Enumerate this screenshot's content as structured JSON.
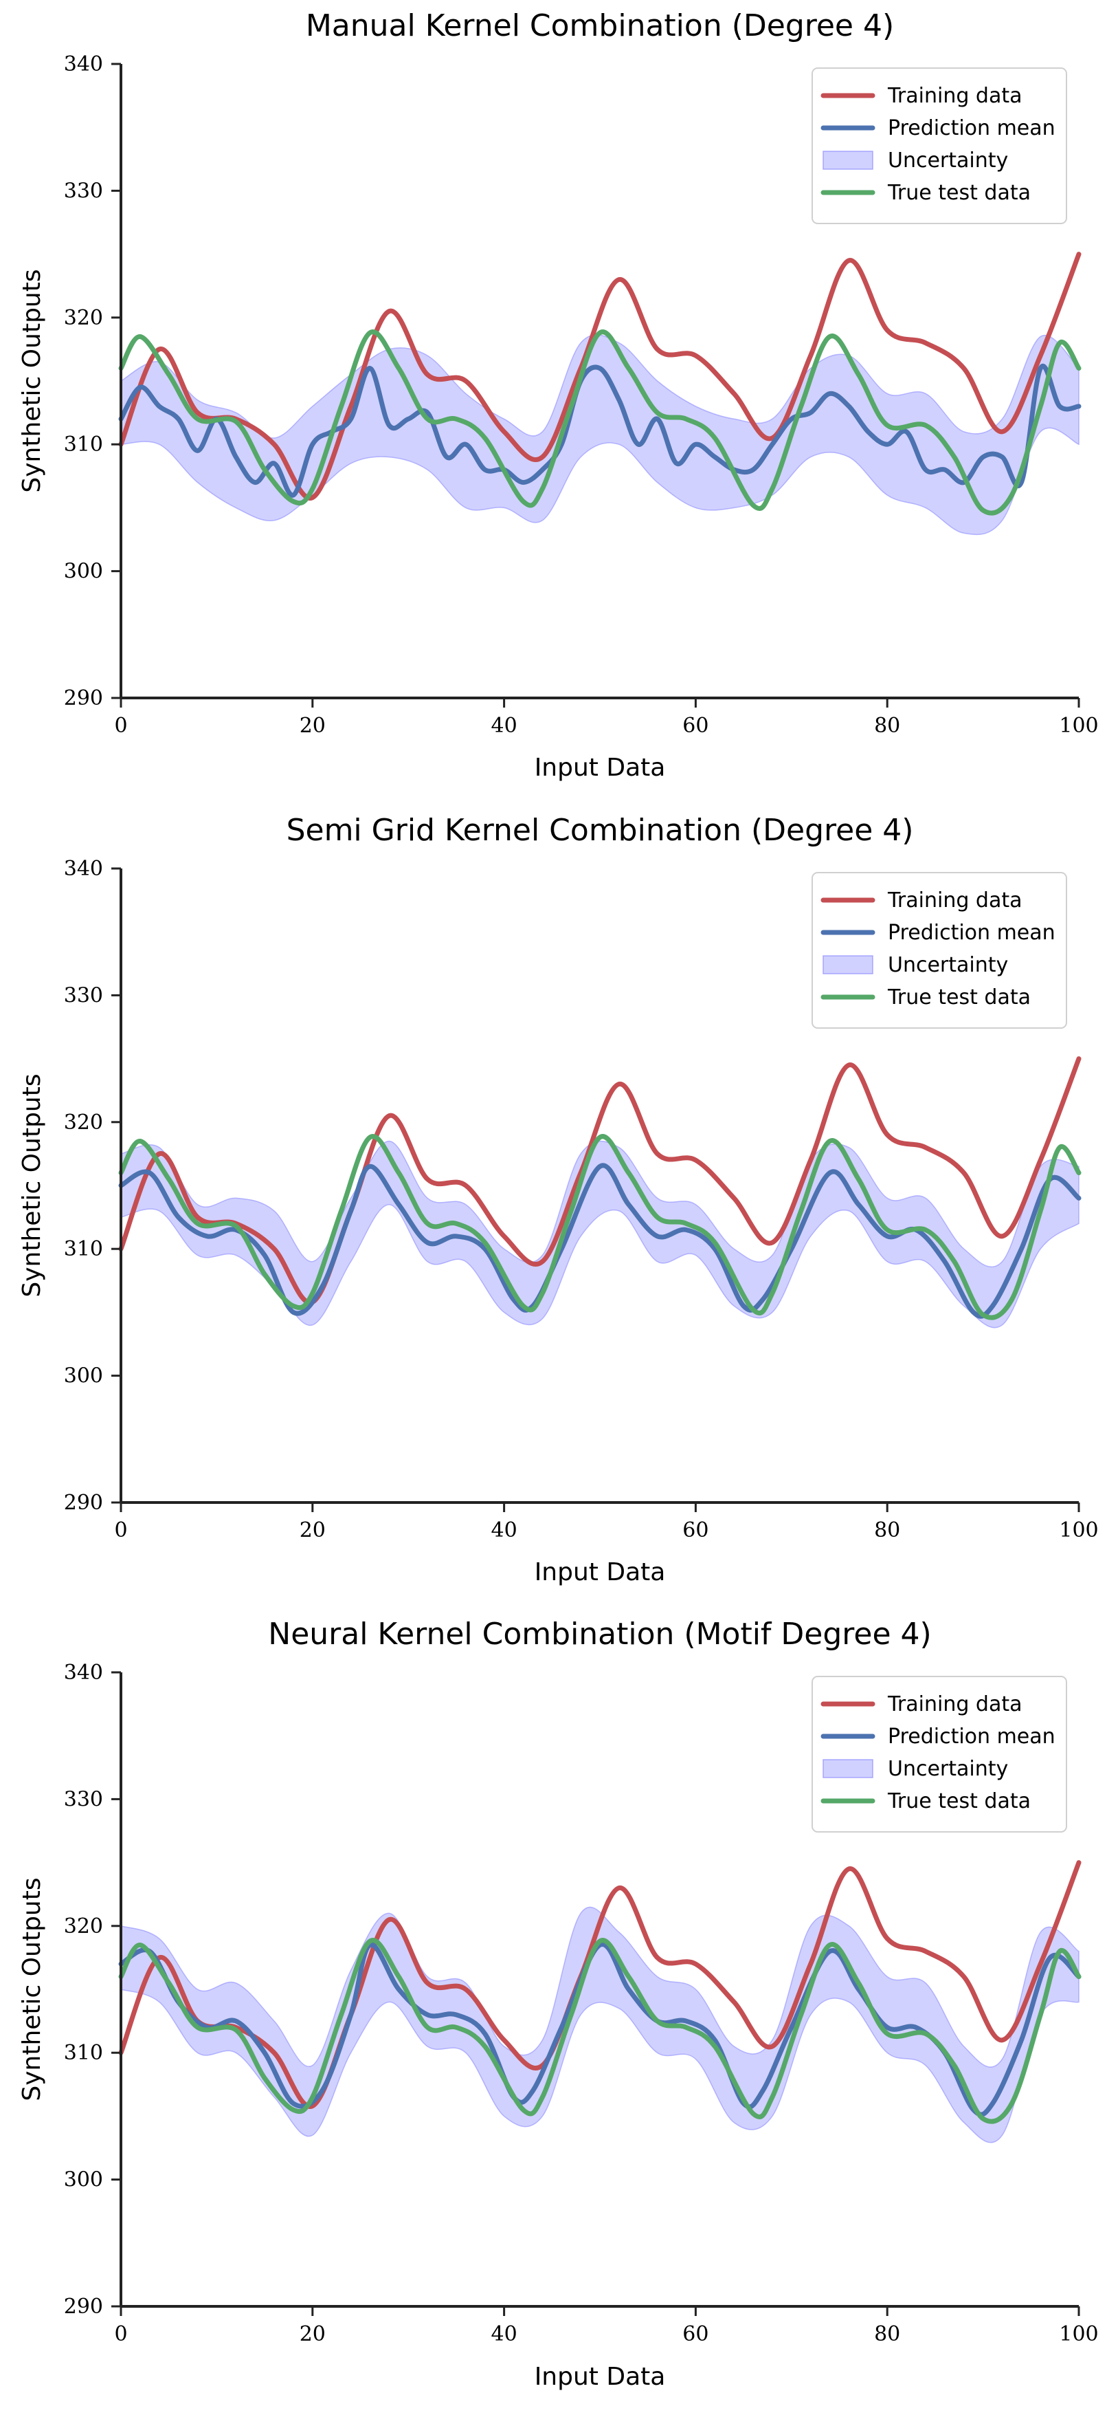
{
  "chart_data": [
    {
      "type": "line",
      "title": "Manual Kernel Combination (Degree 4)",
      "xlabel": "Input Data",
      "ylabel": "Synthetic Outputs",
      "xlim": [
        0,
        100
      ],
      "ylim": [
        290,
        340
      ],
      "xticks": [
        "0",
        "20",
        "40",
        "60",
        "80",
        "100"
      ],
      "yticks": [
        "290",
        "300",
        "310",
        "320",
        "330",
        "340"
      ],
      "grid": false,
      "legend_position": "top-right",
      "legend": [
        "Training data",
        "Prediction mean",
        "Uncertainty",
        "True test data"
      ],
      "series": [
        {
          "name": "Training data",
          "color": "#c44e52",
          "x": [
            0,
            4,
            8,
            12,
            16,
            20,
            24,
            28,
            32,
            36,
            40,
            44,
            48,
            52,
            56,
            60,
            64,
            68,
            72,
            76,
            80,
            84,
            88,
            92,
            96,
            100
          ],
          "y": [
            310,
            317.5,
            312.5,
            312,
            310,
            305.8,
            313,
            320.5,
            315.5,
            315,
            311,
            309,
            316,
            323,
            317.5,
            317,
            314,
            310.5,
            317,
            324.5,
            319,
            318,
            316,
            311,
            317,
            325
          ]
        },
        {
          "name": "Prediction mean",
          "color": "#4c72b0",
          "x": [
            0,
            2,
            4,
            6,
            8,
            10,
            12,
            14,
            16,
            18,
            20,
            22,
            24,
            26,
            28,
            30,
            32,
            34,
            36,
            38,
            40,
            42,
            44,
            46,
            48,
            50,
            52,
            54,
            56,
            58,
            60,
            62,
            64,
            66,
            68,
            70,
            72,
            74,
            76,
            78,
            80,
            82,
            84,
            86,
            88,
            90,
            92,
            94,
            96,
            98,
            100
          ],
          "y": [
            312,
            314.5,
            313,
            312,
            309.5,
            312,
            309,
            307,
            308.5,
            306,
            310,
            311,
            312,
            316,
            311.5,
            312,
            312.5,
            309,
            310,
            308,
            308,
            307,
            308,
            310,
            315,
            316,
            313.5,
            310,
            312,
            308.5,
            310,
            309,
            308,
            308,
            310,
            312,
            312.5,
            314,
            313,
            311,
            310,
            311,
            308,
            308,
            307,
            309,
            309,
            307,
            316,
            313,
            313
          ]
        },
        {
          "name": "Uncertainty",
          "color": "#8c8cff",
          "x": [
            0,
            4,
            8,
            12,
            16,
            20,
            24,
            28,
            32,
            36,
            40,
            44,
            48,
            52,
            56,
            60,
            64,
            68,
            72,
            76,
            80,
            84,
            88,
            92,
            96,
            100
          ],
          "lower": [
            310,
            310,
            307,
            305,
            304,
            306,
            308.5,
            309,
            308,
            305,
            305,
            304,
            309,
            310,
            307,
            305,
            305,
            306,
            309,
            309,
            306,
            305,
            303,
            304,
            311,
            310
          ],
          "upper": [
            315,
            316.5,
            313.5,
            312.5,
            310.5,
            313,
            315.5,
            317.5,
            317,
            314,
            312,
            311,
            318,
            318,
            315,
            313,
            312,
            312,
            316,
            317,
            314,
            314,
            311,
            312,
            318.5,
            316
          ]
        },
        {
          "name": "True test data",
          "color": "#55a868",
          "x": [
            0,
            2,
            5,
            8,
            12,
            15,
            18,
            20,
            23,
            26,
            29,
            32,
            35,
            38,
            42,
            44,
            47,
            50,
            53,
            56,
            59,
            62,
            66,
            68,
            71,
            74,
            77,
            80,
            84,
            87,
            90,
            93,
            96,
            98,
            100
          ],
          "y": [
            316,
            318.5,
            315.5,
            312,
            311.8,
            308,
            305.5,
            306.5,
            313,
            318.8,
            316,
            312,
            312,
            310.5,
            305.5,
            306.5,
            313,
            318.8,
            316,
            312.5,
            312,
            310.5,
            305.2,
            306.5,
            313,
            318.5,
            315.5,
            311.5,
            311.5,
            309,
            304.8,
            306,
            313,
            318,
            316
          ]
        }
      ]
    },
    {
      "type": "line",
      "title": "Semi Grid Kernel Combination (Degree 4)",
      "xlabel": "Input Data",
      "ylabel": "Synthetic Outputs",
      "xlim": [
        0,
        100
      ],
      "ylim": [
        290,
        340
      ],
      "xticks": [
        "0",
        "20",
        "40",
        "60",
        "80",
        "100"
      ],
      "yticks": [
        "290",
        "300",
        "310",
        "320",
        "330",
        "340"
      ],
      "grid": false,
      "legend_position": "top-right",
      "legend": [
        "Training data",
        "Prediction mean",
        "Uncertainty",
        "True test data"
      ],
      "series": [
        {
          "name": "Training data",
          "color": "#c44e52",
          "x": [
            0,
            4,
            8,
            12,
            16,
            20,
            24,
            28,
            32,
            36,
            40,
            44,
            48,
            52,
            56,
            60,
            64,
            68,
            72,
            76,
            80,
            84,
            88,
            92,
            96,
            100
          ],
          "y": [
            310,
            317.5,
            312.5,
            312,
            310,
            305.8,
            313,
            320.5,
            315.5,
            315,
            311,
            309,
            316,
            323,
            317.5,
            317,
            314,
            310.5,
            317,
            324.5,
            319,
            318,
            316,
            311,
            317,
            325
          ]
        },
        {
          "name": "Prediction mean",
          "color": "#4c72b0",
          "x": [
            0,
            3,
            6,
            9,
            12,
            15,
            18,
            21,
            24,
            26,
            29,
            32,
            35,
            38,
            41,
            43,
            46,
            50,
            53,
            56,
            59,
            62,
            65,
            67,
            70,
            74,
            77,
            80,
            83,
            86,
            89,
            91,
            94,
            97,
            100
          ],
          "y": [
            315,
            316,
            312.5,
            311,
            311.5,
            309.5,
            305,
            307,
            313,
            316.5,
            313.5,
            310.5,
            311,
            310,
            306,
            305.5,
            310,
            316.5,
            313.5,
            311,
            311.5,
            310,
            305.5,
            306,
            310,
            316,
            313.5,
            311,
            311.5,
            309,
            305,
            305.5,
            310,
            315.5,
            314
          ]
        },
        {
          "name": "Uncertainty",
          "color": "#8c8cff",
          "x": [
            0,
            4,
            8,
            12,
            16,
            20,
            24,
            28,
            32,
            36,
            40,
            44,
            48,
            52,
            56,
            60,
            64,
            68,
            72,
            76,
            80,
            84,
            88,
            92,
            96,
            100
          ],
          "lower": [
            312.5,
            313,
            309.5,
            309.5,
            307,
            304,
            309,
            313.5,
            309,
            309,
            305,
            304.5,
            311,
            313,
            309,
            309.5,
            305.5,
            305,
            311,
            313,
            309,
            309,
            305.5,
            304,
            310,
            312
          ],
          "upper": [
            317.5,
            318,
            313.5,
            314,
            313,
            309,
            314,
            318.5,
            314,
            313.5,
            310,
            309.5,
            317.5,
            318,
            314,
            313.5,
            310,
            309.5,
            317,
            318,
            314,
            314,
            310,
            309,
            316.5,
            316.5
          ]
        },
        {
          "name": "True test data",
          "color": "#55a868",
          "x": [
            0,
            2,
            5,
            8,
            12,
            15,
            18,
            20,
            23,
            26,
            29,
            32,
            35,
            38,
            42,
            44,
            47,
            50,
            53,
            56,
            59,
            62,
            66,
            68,
            71,
            74,
            77,
            80,
            84,
            87,
            90,
            93,
            96,
            98,
            100
          ],
          "y": [
            316,
            318.5,
            315.5,
            312,
            311.8,
            308,
            305.5,
            306.5,
            313,
            318.8,
            316,
            312,
            312,
            310.5,
            305.5,
            306.5,
            313,
            318.8,
            316,
            312.5,
            312,
            310.5,
            305.2,
            306.5,
            313,
            318.5,
            315.5,
            311.5,
            311.5,
            309,
            304.8,
            306,
            313,
            318,
            316
          ]
        }
      ]
    },
    {
      "type": "line",
      "title": "Neural Kernel Combination (Motif Degree 4)",
      "xlabel": "Input Data",
      "ylabel": "Synthetic Outputs",
      "xlim": [
        0,
        100
      ],
      "ylim": [
        290,
        340
      ],
      "xticks": [
        "0",
        "20",
        "40",
        "60",
        "80",
        "100"
      ],
      "yticks": [
        "290",
        "300",
        "310",
        "320",
        "330",
        "340"
      ],
      "grid": false,
      "legend_position": "top-right",
      "legend": [
        "Training data",
        "Prediction mean",
        "Uncertainty",
        "True test data"
      ],
      "series": [
        {
          "name": "Training data",
          "color": "#c44e52",
          "x": [
            0,
            4,
            8,
            12,
            16,
            20,
            24,
            28,
            32,
            36,
            40,
            44,
            48,
            52,
            56,
            60,
            64,
            68,
            72,
            76,
            80,
            84,
            88,
            92,
            96,
            100
          ],
          "y": [
            310,
            317.5,
            312.5,
            312,
            310,
            305.8,
            313,
            320.5,
            315.5,
            315,
            311,
            309,
            316,
            323,
            317.5,
            317,
            314,
            310.5,
            317,
            324.5,
            319,
            318,
            316,
            311,
            317,
            325
          ]
        },
        {
          "name": "Prediction mean",
          "color": "#4c72b0",
          "x": [
            0,
            3,
            6,
            9,
            12,
            15,
            18,
            21,
            24,
            26,
            29,
            32,
            35,
            38,
            41,
            43,
            46,
            50,
            53,
            56,
            59,
            62,
            65,
            67,
            70,
            74,
            77,
            80,
            83,
            86,
            89,
            91,
            94,
            97,
            100
          ],
          "y": [
            317,
            318,
            314,
            312,
            312.5,
            310,
            306,
            307,
            313,
            318.5,
            315,
            313,
            313,
            311.5,
            306.5,
            307,
            312,
            318.5,
            315,
            312.5,
            312.5,
            311,
            306,
            307,
            312,
            318,
            315,
            312,
            312,
            310,
            305.5,
            306,
            311,
            317.5,
            316
          ]
        },
        {
          "name": "Uncertainty",
          "color": "#8c8cff",
          "x": [
            0,
            4,
            8,
            12,
            16,
            20,
            24,
            28,
            32,
            36,
            40,
            44,
            48,
            52,
            56,
            60,
            64,
            68,
            72,
            76,
            80,
            84,
            88,
            92,
            96,
            100
          ],
          "lower": [
            315,
            314,
            310,
            310,
            306.5,
            303.5,
            310,
            314,
            310.5,
            310,
            305,
            305,
            313,
            313.5,
            310,
            309.5,
            304.5,
            305,
            313,
            314,
            310,
            309,
            304.5,
            303.5,
            313,
            314
          ],
          "upper": [
            320,
            319,
            315,
            315.5,
            312.5,
            309,
            316.5,
            321,
            316,
            315.5,
            310.5,
            311,
            321,
            319.5,
            316,
            315,
            310.5,
            311,
            320,
            320,
            316,
            315.5,
            310.5,
            309.5,
            319.5,
            318
          ]
        },
        {
          "name": "True test data",
          "color": "#55a868",
          "x": [
            0,
            2,
            5,
            8,
            12,
            15,
            18,
            20,
            23,
            26,
            29,
            32,
            35,
            38,
            42,
            44,
            47,
            50,
            53,
            56,
            59,
            62,
            66,
            68,
            71,
            74,
            77,
            80,
            84,
            87,
            90,
            93,
            96,
            98,
            100
          ],
          "y": [
            316,
            318.5,
            315.5,
            312,
            311.8,
            308,
            305.5,
            306.5,
            313,
            318.8,
            316,
            312,
            312,
            310.5,
            305.5,
            306.5,
            313,
            318.8,
            316,
            312.5,
            312,
            310.5,
            305.2,
            306.5,
            313,
            318.5,
            315.5,
            311.5,
            311.5,
            309,
            304.8,
            306,
            313,
            318,
            316
          ]
        }
      ]
    }
  ]
}
